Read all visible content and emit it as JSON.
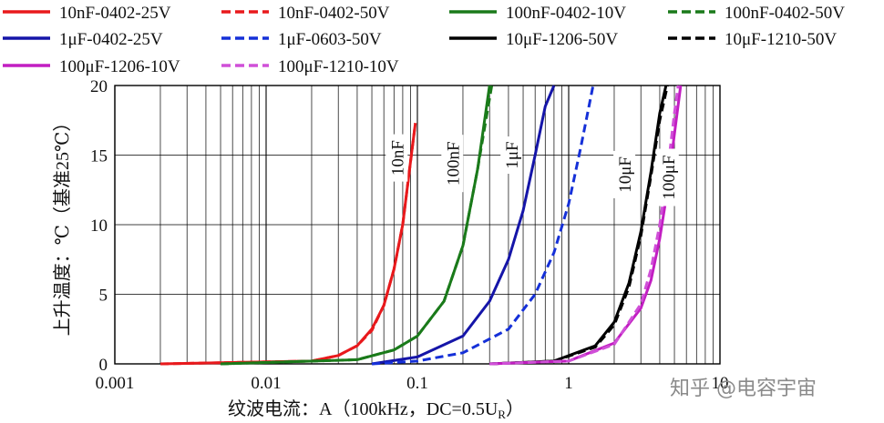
{
  "chart_data": {
    "type": "line",
    "title": "",
    "xlabel": "纹波电流：A（100kHz，DC=0.5U",
    "xlabel_sub": "R",
    "xlabel_close": "）",
    "ylabel": "上升温度：℃（基准25℃）",
    "xscale": "log",
    "xlim": [
      0.001,
      10
    ],
    "ylim": [
      0,
      20
    ],
    "x_ticks": [
      0.001,
      0.01,
      0.1,
      1,
      10
    ],
    "x_tick_labels": [
      "0.001",
      "0.01",
      "0.1",
      "1",
      "10"
    ],
    "y_ticks": [
      0,
      5,
      10,
      15,
      20
    ],
    "y_tick_labels": [
      "0",
      "5",
      "10",
      "15",
      "20"
    ],
    "grid": true,
    "legend_position": "top",
    "series": [
      {
        "name": "10nF-0402-25V",
        "color": "#e8191c",
        "dash": "solid",
        "x": [
          0.002,
          0.02,
          0.03,
          0.04,
          0.05,
          0.06,
          0.07,
          0.08,
          0.09,
          0.097
        ],
        "y": [
          0,
          0.2,
          0.6,
          1.3,
          2.5,
          4.2,
          6.8,
          10.0,
          14.5,
          17.3
        ]
      },
      {
        "name": "10nF-0402-50V",
        "color": "#e8191c",
        "dash": "dashed",
        "x": [
          0.002,
          0.02,
          0.03,
          0.04,
          0.05,
          0.06,
          0.07,
          0.08,
          0.09,
          0.097
        ],
        "y": [
          0,
          0.2,
          0.6,
          1.3,
          2.4,
          4.2,
          6.8,
          10.0,
          14.5,
          17.3
        ]
      },
      {
        "name": "100nF-0402-10V",
        "color": "#1a7a1a",
        "dash": "solid",
        "x": [
          0.005,
          0.04,
          0.07,
          0.1,
          0.15,
          0.2,
          0.25,
          0.3
        ],
        "y": [
          0,
          0.3,
          1.0,
          2.0,
          4.5,
          8.5,
          14.0,
          20
        ]
      },
      {
        "name": "100nF-0402-50V",
        "color": "#1a7a1a",
        "dash": "dashed",
        "x": [
          0.005,
          0.04,
          0.07,
          0.1,
          0.15,
          0.2,
          0.25,
          0.31
        ],
        "y": [
          0,
          0.3,
          1.0,
          2.0,
          4.5,
          8.5,
          14.0,
          20
        ]
      },
      {
        "name": "1μF-0402-25V",
        "color": "#1515a8",
        "dash": "solid",
        "x": [
          0.05,
          0.1,
          0.2,
          0.3,
          0.4,
          0.5,
          0.6,
          0.7,
          0.8
        ],
        "y": [
          0,
          0.5,
          2.0,
          4.5,
          7.5,
          11.0,
          15.0,
          18.5,
          20
        ]
      },
      {
        "name": "1μF-0603-50V",
        "color": "#1530d8",
        "dash": "dashed",
        "x": [
          0.05,
          0.1,
          0.2,
          0.4,
          0.6,
          0.8,
          1.0,
          1.2,
          1.45
        ],
        "y": [
          0,
          0.2,
          0.8,
          2.5,
          5.0,
          8.0,
          11.5,
          15.5,
          20
        ]
      },
      {
        "name": "10μF-1206-50V",
        "color": "#000000",
        "dash": "solid",
        "x": [
          0.3,
          0.8,
          1.5,
          2.0,
          2.5,
          3.0,
          3.5,
          4.0,
          4.4
        ],
        "y": [
          0,
          0.2,
          1.3,
          3.0,
          5.8,
          9.5,
          13.8,
          18.0,
          20
        ]
      },
      {
        "name": "10μF-1210-50V",
        "color": "#000000",
        "dash": "dashed",
        "x": [
          0.3,
          0.8,
          1.5,
          2.0,
          2.5,
          3.0,
          3.5,
          4.0,
          4.5
        ],
        "y": [
          0,
          0.2,
          1.2,
          2.8,
          5.5,
          9.2,
          13.5,
          17.5,
          20
        ]
      },
      {
        "name": "100μF-1206-10V",
        "color": "#c21ec2",
        "dash": "solid",
        "x": [
          0.3,
          1.0,
          2.0,
          3.0,
          3.5,
          4.0,
          4.5,
          5.0,
          5.5
        ],
        "y": [
          0,
          0.2,
          1.5,
          4.0,
          6.0,
          9.0,
          12.5,
          16.5,
          20
        ]
      },
      {
        "name": "100μF-1210-10V",
        "color": "#d050d8",
        "dash": "dashed",
        "x": [
          0.3,
          1.0,
          2.0,
          3.0,
          3.5,
          4.0,
          4.5,
          5.0,
          5.3
        ],
        "y": [
          0,
          0.2,
          1.4,
          4.3,
          6.8,
          10.0,
          13.8,
          18.0,
          20
        ]
      }
    ],
    "annotations": [
      {
        "text": "10nF",
        "x": 0.075,
        "y": 14.8,
        "rotation": -90
      },
      {
        "text": "100nF",
        "x": 0.175,
        "y": 14.4,
        "rotation": -90
      },
      {
        "text": "1μF",
        "x": 0.43,
        "y": 15.0,
        "rotation": -90
      },
      {
        "text": "10μF",
        "x": 2.4,
        "y": 13.6,
        "rotation": -90
      },
      {
        "text": "100μF",
        "x": 4.65,
        "y": 13.4,
        "rotation": -90
      }
    ]
  },
  "watermark": "知乎 @电容宇宙"
}
